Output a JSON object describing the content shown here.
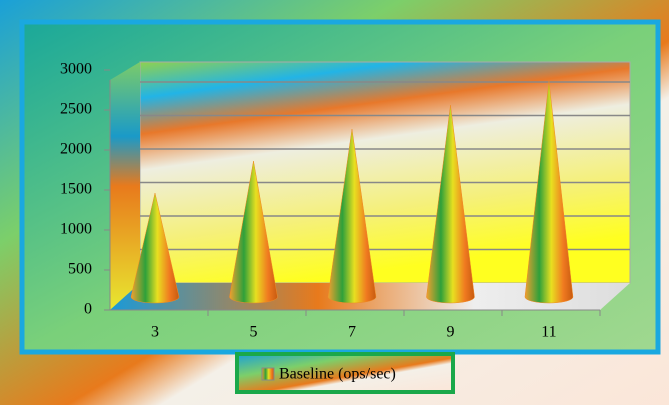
{
  "chart_data": {
    "type": "bar",
    "categories": [
      "3",
      "5",
      "7",
      "9",
      "11"
    ],
    "series": [
      {
        "name": "Baseline (ops/sec)",
        "color": "#f08a24",
        "values": [
          1300,
          1700,
          2100,
          2400,
          2700
        ]
      }
    ],
    "ylim": [
      0,
      3000
    ],
    "yticks": [
      0,
      500,
      1000,
      1500,
      2000,
      2500,
      3000
    ],
    "grid": true,
    "legend": "bottom"
  }
}
